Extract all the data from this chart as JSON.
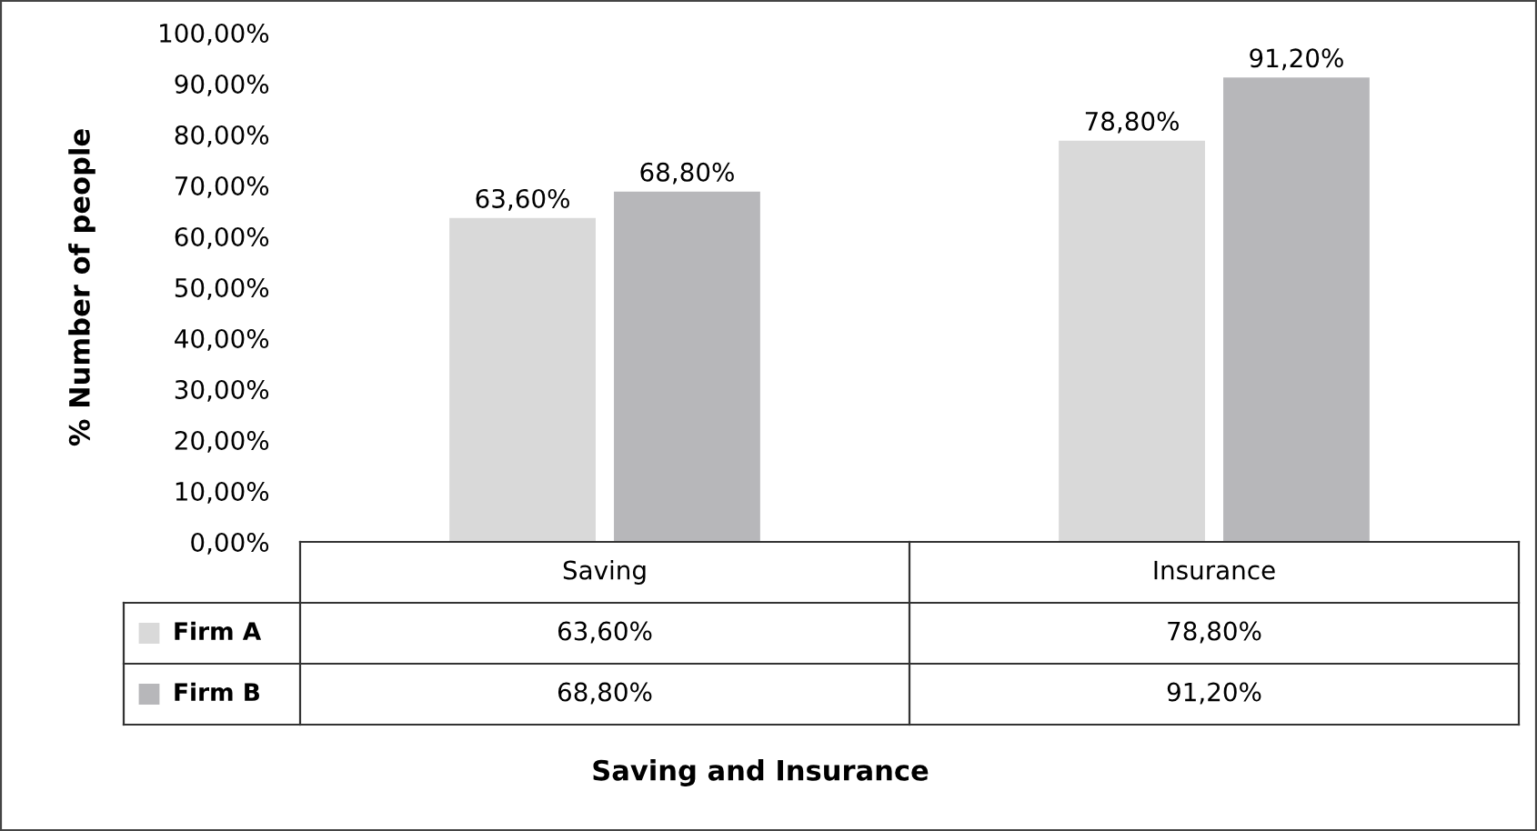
{
  "chart_data": {
    "type": "bar",
    "ylabel": "% Number of people",
    "annotations": [
      "Saving and Insurance"
    ],
    "categories": [
      "Saving",
      "Insurance"
    ],
    "series": [
      {
        "name": "Firm A",
        "color": "#d9d9d9",
        "values": [
          63.6,
          78.8
        ],
        "value_labels": [
          "63,60%",
          "78,80%"
        ]
      },
      {
        "name": "Firm B",
        "color": "#b7b7ba",
        "values": [
          68.8,
          91.2
        ],
        "value_labels": [
          "68,80%",
          "91,20%"
        ]
      }
    ],
    "ylim": [
      0,
      100
    ],
    "yticks": [
      {
        "value": 0,
        "label": "0,00%"
      },
      {
        "value": 10,
        "label": "10,00%"
      },
      {
        "value": 20,
        "label": "20,00%"
      },
      {
        "value": 30,
        "label": "30,00%"
      },
      {
        "value": 40,
        "label": "40,00%"
      },
      {
        "value": 50,
        "label": "50,00%"
      },
      {
        "value": 60,
        "label": "60,00%"
      },
      {
        "value": 70,
        "label": "70,00%"
      },
      {
        "value": 80,
        "label": "80,00%"
      },
      {
        "value": 90,
        "label": "90,00%"
      },
      {
        "value": 100,
        "label": "100,00%"
      }
    ],
    "grid": false,
    "legend": "bottom left"
  }
}
